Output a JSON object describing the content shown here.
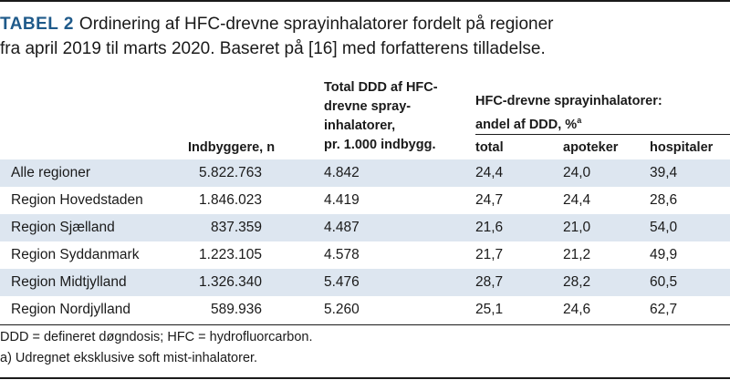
{
  "caption": {
    "label": "TABEL 2",
    "line1": "Ordinering af HFC-drevne sprayinhalatorer fordelt på regioner",
    "line2": "fra april 2019 til marts 2020. Baseret på [16] med forfatterens tilladelse."
  },
  "headers": {
    "population": "Indbyggere, n",
    "total_ddd": [
      "Total DDD af HFC-",
      "drevne spray-",
      "inhalatorer,",
      "pr. 1.000 indbygg."
    ],
    "group": [
      "HFC-drevne sprayinhalatorer:",
      "andel af DDD, %"
    ],
    "group_sup": "a",
    "sub": [
      "total",
      "apoteker",
      "hospitaler"
    ]
  },
  "rows": [
    {
      "region": "Alle regioner",
      "pop": "5.822.763",
      "ddd": "4.842",
      "total": "24,4",
      "apoteker": "24,0",
      "hospitaler": "39,4"
    },
    {
      "region": "Region Hovedstaden",
      "pop": "1.846.023",
      "ddd": "4.419",
      "total": "24,7",
      "apoteker": "24,4",
      "hospitaler": "28,6"
    },
    {
      "region": "Region Sjælland",
      "pop": "837.359",
      "ddd": "4.487",
      "total": "21,6",
      "apoteker": "21,0",
      "hospitaler": "54,0"
    },
    {
      "region": "Region Syddanmark",
      "pop": "1.223.105",
      "ddd": "4.578",
      "total": "21,7",
      "apoteker": "21,2",
      "hospitaler": "49,9"
    },
    {
      "region": "Region Midtjylland",
      "pop": "1.326.340",
      "ddd": "5.476",
      "total": "28,7",
      "apoteker": "28,2",
      "hospitaler": "60,5"
    },
    {
      "region": "Region Nordjylland",
      "pop": "589.936",
      "ddd": "5.260",
      "total": "25,1",
      "apoteker": "24,6",
      "hospitaler": "62,7"
    }
  ],
  "footnotes": [
    "DDD = defineret døgndosis; HFC = hydrofluorcarbon.",
    "a) Udregnet eksklusive soft mist-inhalatorer."
  ]
}
